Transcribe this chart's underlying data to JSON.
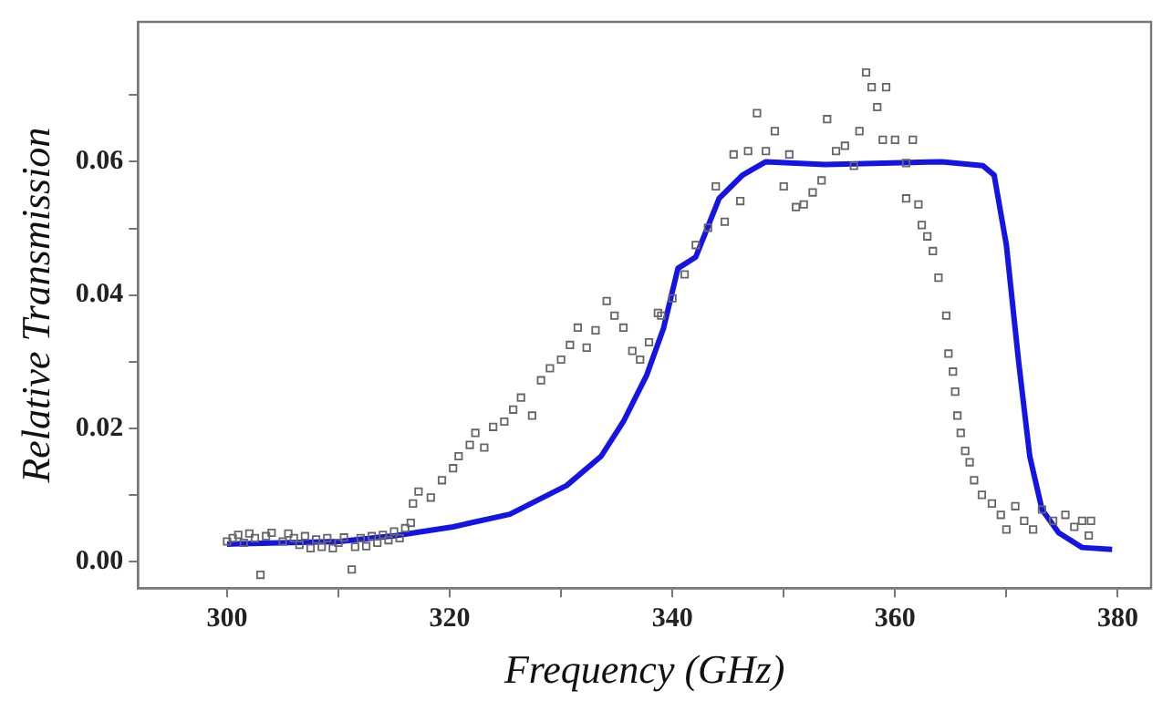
{
  "chart_data": {
    "type": "scatter",
    "xlabel": "Frequency (GHz)",
    "ylabel": "Relative Transmission",
    "xlim": [
      292,
      383
    ],
    "ylim": [
      -0.004,
      0.081
    ],
    "xticks": [
      300,
      {
        "value": 310,
        "label": null
      },
      320,
      {
        "value": 330,
        "label": null
      },
      340,
      {
        "value": 350,
        "label": null
      },
      360,
      {
        "value": 370,
        "label": null
      },
      380
    ],
    "yticks": [
      {
        "value": 0,
        "label": "0.00"
      },
      {
        "value": 0.01,
        "label": null
      },
      {
        "value": 0.02,
        "label": "0.02"
      },
      {
        "value": 0.03,
        "label": null
      },
      {
        "value": 0.04,
        "label": "0.04"
      },
      {
        "value": 0.05,
        "label": null
      },
      {
        "value": 0.06,
        "label": "0.06"
      },
      {
        "value": 0.07,
        "label": null
      }
    ],
    "grid": false,
    "legend": false,
    "series": [
      {
        "type": "scatter",
        "marker": "square",
        "color": "#666666",
        "x": [
          300,
          300.5,
          301,
          301.5,
          302,
          302.5,
          303,
          303.5,
          304,
          305,
          305.5,
          306,
          306.5,
          307,
          307.5,
          308,
          308.5,
          309,
          309.5,
          310,
          310.5,
          311.2,
          311.5,
          312,
          312.5,
          313,
          313.5,
          314,
          314.5,
          315,
          315.5,
          316,
          316.5,
          316.7,
          317.2,
          318.3,
          319.3,
          320.3,
          320.8,
          321.8,
          322.3,
          323.1,
          323.9,
          324.9,
          325.7,
          326.4,
          327.4,
          328.2,
          329,
          330,
          330.8,
          331.5,
          332.3,
          333.1,
          334.1,
          334.8,
          335.6,
          336.4,
          337.1,
          337.9,
          338.7,
          339,
          340,
          341.1,
          342.1,
          343.2,
          343.9,
          344.7,
          345.5,
          346.1,
          346.8,
          347.6,
          348.4,
          349.2,
          350,
          350.5,
          351.1,
          351.8,
          352.6,
          353.4,
          353.9,
          354.7,
          355.5,
          356.3,
          356.8,
          357.4,
          357.9,
          358.4,
          358.9,
          359.2,
          360,
          361,
          361.6,
          361,
          362.1,
          362.4,
          362.9,
          363.4,
          363.9,
          364.6,
          364.8,
          365.2,
          365.4,
          365.6,
          365.9,
          366.3,
          366.7,
          367.1,
          367.8,
          368.7,
          369.5,
          370,
          370.8,
          371.6,
          372.4,
          373.2,
          374.2,
          375.3,
          376.1,
          376.8,
          377.4,
          377.6
        ],
        "values": [
          0.003,
          0.0035,
          0.004,
          0.0028,
          0.0042,
          0.0035,
          -0.002,
          0.0038,
          0.0043,
          0.003,
          0.0042,
          0.0035,
          0.0025,
          0.0038,
          0.002,
          0.0033,
          0.0022,
          0.0035,
          0.002,
          0.0028,
          0.0036,
          -0.0012,
          0.0022,
          0.0035,
          0.0023,
          0.0038,
          0.0028,
          0.004,
          0.0032,
          0.0045,
          0.0035,
          0.005,
          0.0058,
          0.0087,
          0.0105,
          0.0096,
          0.0122,
          0.014,
          0.0158,
          0.0175,
          0.0193,
          0.0171,
          0.0202,
          0.021,
          0.0228,
          0.0246,
          0.0219,
          0.0272,
          0.029,
          0.0303,
          0.0325,
          0.0351,
          0.0321,
          0.0347,
          0.0391,
          0.0369,
          0.0351,
          0.0316,
          0.0303,
          0.0329,
          0.0373,
          0.0369,
          0.0395,
          0.0431,
          0.0475,
          0.0501,
          0.0563,
          0.051,
          0.0611,
          0.0541,
          0.0616,
          0.0673,
          0.0616,
          0.0646,
          0.0563,
          0.0611,
          0.0532,
          0.0536,
          0.0554,
          0.0572,
          0.0664,
          0.0616,
          0.0624,
          0.0594,
          0.0646,
          0.0734,
          0.0712,
          0.0682,
          0.0633,
          0.0712,
          0.0633,
          0.0598,
          0.0633,
          0.0545,
          0.0536,
          0.0505,
          0.0488,
          0.0466,
          0.0426,
          0.0369,
          0.0312,
          0.0285,
          0.0255,
          0.0219,
          0.0193,
          0.0166,
          0.0149,
          0.0122,
          0.01,
          0.0087,
          0.007,
          0.0048,
          0.0083,
          0.0061,
          0.0048,
          0.0078,
          0.0061,
          0.007,
          0.0052,
          0.0061,
          0.0039,
          0.0061
        ]
      },
      {
        "type": "line",
        "marker": "none",
        "line_style": "solid",
        "color": "#1414e6",
        "x": [
          300,
          310.1,
          315.2,
          320.3,
          325.4,
          330.5,
          333.6,
          335.6,
          337.7,
          339.2,
          340.5,
          342.1,
          344.2,
          346.3,
          348.4,
          353.7,
          358.9,
          364.2,
          367.9,
          368.9,
          370,
          371.1,
          372.1,
          373.2,
          374.7,
          376.8,
          379.5
        ],
        "values": [
          0.0026,
          0.003,
          0.0039,
          0.0052,
          0.0071,
          0.0114,
          0.0158,
          0.021,
          0.028,
          0.035,
          0.044,
          0.0457,
          0.0545,
          0.058,
          0.06,
          0.0596,
          0.0598,
          0.06,
          0.0594,
          0.058,
          0.0475,
          0.03,
          0.0158,
          0.0078,
          0.0043,
          0.0021,
          0.0018
        ]
      }
    ]
  }
}
